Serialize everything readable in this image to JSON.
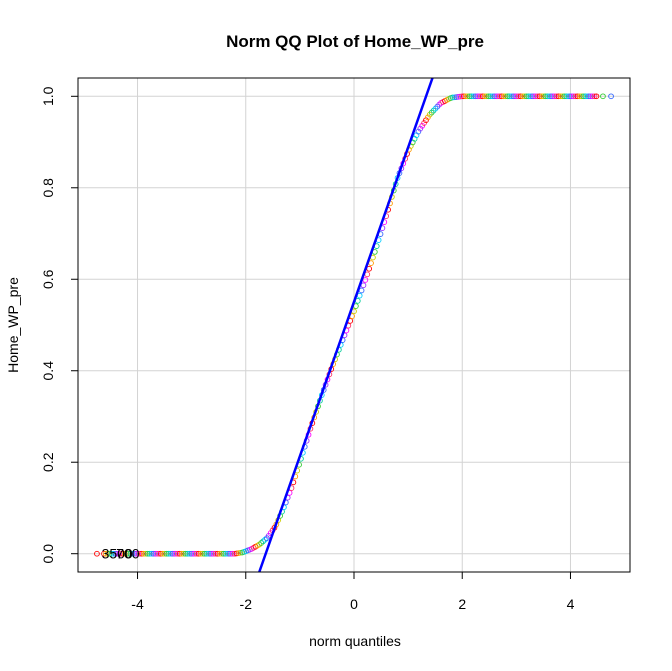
{
  "chart_data": {
    "type": "scatter",
    "title": "Norm QQ Plot of Home_WP_pre",
    "xlabel": "norm quantiles",
    "ylabel": "Home_WP_pre",
    "xlim": [
      -5.1,
      5.1
    ],
    "ylim": [
      -0.04,
      1.04
    ],
    "x_ticks": [
      -4,
      -2,
      0,
      2,
      4
    ],
    "y_ticks": [
      0.0,
      0.2,
      0.4,
      0.6,
      0.8,
      1.0
    ],
    "x_tick_labels": [
      "-4",
      "-2",
      "0",
      "2",
      "4"
    ],
    "y_tick_labels": [
      "0.0",
      "0.2",
      "0.4",
      "0.6",
      "0.8",
      "1.0"
    ],
    "grid": true,
    "legend": "none",
    "point_colors": [
      "#ff0000",
      "#ff9900",
      "#cccc00",
      "#33cc33",
      "#00cc99",
      "#00ccff",
      "#3366ff",
      "#9933ff",
      "#ff00ff",
      "#ff3366"
    ],
    "reference_line": {
      "color": "#0000ff",
      "points": [
        [
          -1.75,
          -0.04
        ],
        [
          1.45,
          1.04
        ]
      ]
    },
    "qq_curve": [
      [
        -4.75,
        0.0
      ],
      [
        -2.2,
        0.0
      ],
      [
        -2.05,
        0.003
      ],
      [
        -1.9,
        0.01
      ],
      [
        -1.75,
        0.02
      ],
      [
        -1.6,
        0.035
      ],
      [
        -1.45,
        0.06
      ],
      [
        -1.3,
        0.1
      ],
      [
        -1.15,
        0.145
      ],
      [
        -1.0,
        0.2
      ],
      [
        -0.8,
        0.275
      ],
      [
        -0.6,
        0.345
      ],
      [
        -0.4,
        0.41
      ],
      [
        -0.2,
        0.47
      ],
      [
        0.0,
        0.53
      ],
      [
        0.2,
        0.595
      ],
      [
        0.4,
        0.665
      ],
      [
        0.6,
        0.74
      ],
      [
        0.8,
        0.82
      ],
      [
        1.0,
        0.88
      ],
      [
        1.2,
        0.925
      ],
      [
        1.4,
        0.96
      ],
      [
        1.6,
        0.985
      ],
      [
        1.8,
        0.997
      ],
      [
        2.0,
        1.0
      ],
      [
        4.75,
        1.0
      ]
    ],
    "annotations": [
      {
        "text": "3500",
        "x": -4.72,
        "y": 0.0
      },
      {
        "text": "700",
        "x": -4.45,
        "y": 0.0
      }
    ]
  }
}
